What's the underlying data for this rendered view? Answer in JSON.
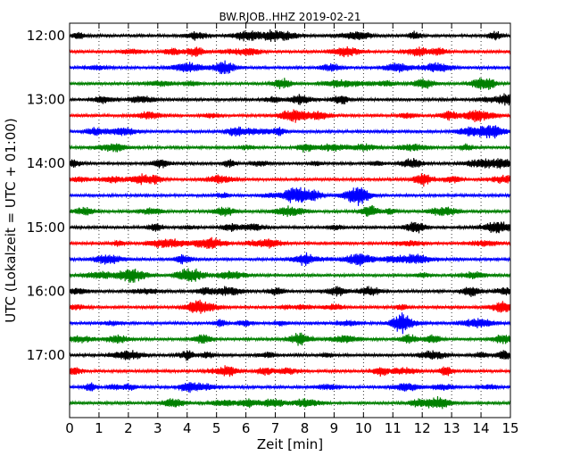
{
  "chart_data": {
    "type": "line",
    "title": "BW.RJOB..HHZ 2019-02-21",
    "xlabel": "Zeit  [min]",
    "ylabel": "UTC (Lokalzeit = UTC + 01:00)",
    "xlim": [
      0,
      15
    ],
    "x_ticks": [
      "0",
      "1",
      "2",
      "3",
      "4",
      "5",
      "6",
      "7",
      "8",
      "9",
      "10",
      "11",
      "12",
      "13",
      "14",
      "15"
    ],
    "y_tick_labels": [
      "12:00",
      "13:00",
      "14:00",
      "15:00",
      "16:00",
      "17:00"
    ],
    "grid": "vertical dotted",
    "trace_interval_minutes": 15,
    "trace_start_times": [
      "12:00",
      "12:15",
      "12:30",
      "12:45",
      "13:00",
      "13:15",
      "13:30",
      "13:45",
      "14:00",
      "14:15",
      "14:30",
      "14:45",
      "15:00",
      "15:15",
      "15:30",
      "15:45",
      "16:00",
      "16:15",
      "16:30",
      "16:45",
      "17:00",
      "17:15",
      "17:30",
      "17:45"
    ],
    "trace_colors": [
      "#000000",
      "#ff0000",
      "#0000ff",
      "#008000"
    ]
  }
}
